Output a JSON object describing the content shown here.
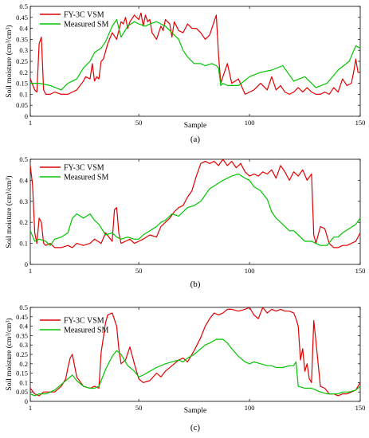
{
  "chart_data": [
    {
      "type": "line",
      "caption": "(a)",
      "xlabel": "Sample",
      "ylabel": "Soil moisture (cm³/cm³)",
      "xlim": [
        1,
        150
      ],
      "ylim": [
        0,
        0.5
      ],
      "xticks": [
        1,
        50,
        100,
        150
      ],
      "yticks": [
        0,
        0.05,
        0.1,
        0.15,
        0.2,
        0.25,
        0.3,
        0.35,
        0.4,
        0.45,
        0.5
      ],
      "legend_position": "top-left",
      "series": [
        {
          "name": "FY-3C VSM",
          "color": "#e00000",
          "x": [
            1,
            3,
            4,
            5,
            6,
            7,
            8,
            10,
            12,
            15,
            18,
            20,
            22,
            25,
            26,
            28,
            29,
            30,
            31,
            32,
            33,
            34,
            36,
            38,
            40,
            42,
            43,
            44,
            45,
            46,
            48,
            50,
            51,
            52,
            53,
            54,
            55,
            56,
            58,
            60,
            61,
            62,
            63,
            64,
            65,
            66,
            68,
            70,
            72,
            74,
            76,
            78,
            80,
            82,
            84,
            85,
            86,
            87,
            88,
            90,
            92,
            95,
            98,
            100,
            102,
            105,
            108,
            110,
            112,
            114,
            116,
            118,
            120,
            122,
            124,
            126,
            128,
            130,
            132,
            134,
            136,
            138,
            140,
            142,
            144,
            146,
            147,
            148,
            149,
            150
          ],
          "y": [
            0.17,
            0.12,
            0.11,
            0.33,
            0.36,
            0.12,
            0.1,
            0.1,
            0.11,
            0.1,
            0.1,
            0.11,
            0.12,
            0.16,
            0.18,
            0.17,
            0.24,
            0.16,
            0.18,
            0.17,
            0.25,
            0.26,
            0.33,
            0.38,
            0.35,
            0.43,
            0.42,
            0.45,
            0.4,
            0.43,
            0.46,
            0.44,
            0.47,
            0.41,
            0.46,
            0.43,
            0.44,
            0.38,
            0.35,
            0.41,
            0.39,
            0.44,
            0.43,
            0.42,
            0.36,
            0.43,
            0.39,
            0.38,
            0.42,
            0.4,
            0.4,
            0.38,
            0.35,
            0.37,
            0.43,
            0.46,
            0.28,
            0.15,
            0.18,
            0.24,
            0.15,
            0.17,
            0.1,
            0.11,
            0.12,
            0.15,
            0.12,
            0.18,
            0.12,
            0.14,
            0.11,
            0.1,
            0.11,
            0.13,
            0.11,
            0.13,
            0.11,
            0.1,
            0.1,
            0.11,
            0.1,
            0.13,
            0.11,
            0.17,
            0.14,
            0.15,
            0.2,
            0.26,
            0.2,
            0.2
          ]
        },
        {
          "name": "Measured SM",
          "color": "#00c400",
          "x": [
            1,
            5,
            10,
            15,
            18,
            20,
            22,
            25,
            28,
            30,
            33,
            35,
            38,
            40,
            42,
            45,
            48,
            50,
            53,
            55,
            58,
            60,
            62,
            65,
            68,
            70,
            72,
            75,
            78,
            80,
            83,
            85,
            86,
            87,
            88,
            90,
            95,
            100,
            105,
            110,
            115,
            120,
            125,
            130,
            135,
            140,
            145,
            148,
            150
          ],
          "y": [
            0.15,
            0.15,
            0.14,
            0.12,
            0.15,
            0.16,
            0.17,
            0.22,
            0.25,
            0.29,
            0.31,
            0.34,
            0.41,
            0.44,
            0.36,
            0.41,
            0.43,
            0.42,
            0.41,
            0.42,
            0.43,
            0.42,
            0.41,
            0.38,
            0.35,
            0.3,
            0.27,
            0.24,
            0.24,
            0.23,
            0.24,
            0.23,
            0.22,
            0.14,
            0.15,
            0.14,
            0.14,
            0.18,
            0.2,
            0.21,
            0.23,
            0.16,
            0.18,
            0.13,
            0.15,
            0.21,
            0.25,
            0.32,
            0.31
          ]
        }
      ]
    },
    {
      "type": "line",
      "caption": "(b)",
      "xlabel": "",
      "ylabel": "Soil moisture (cm³/cm³)",
      "xlim": [
        1,
        150
      ],
      "ylim": [
        0,
        0.5
      ],
      "xticks": [
        1,
        50,
        100,
        150
      ],
      "yticks": [
        0,
        0.1,
        0.2,
        0.3,
        0.4,
        0.5
      ],
      "legend_position": "top-left",
      "series": [
        {
          "name": "FY-3C VSM",
          "color": "#e00000",
          "x": [
            1,
            2,
            3,
            4,
            5,
            6,
            7,
            8,
            10,
            12,
            15,
            18,
            20,
            22,
            25,
            28,
            30,
            33,
            35,
            38,
            39,
            40,
            41,
            42,
            44,
            46,
            48,
            50,
            52,
            55,
            58,
            60,
            62,
            64,
            66,
            68,
            70,
            72,
            74,
            76,
            78,
            80,
            82,
            84,
            86,
            88,
            90,
            92,
            94,
            96,
            98,
            100,
            102,
            104,
            106,
            108,
            110,
            112,
            114,
            116,
            118,
            120,
            122,
            124,
            126,
            128,
            129,
            130,
            132,
            134,
            136,
            138,
            140,
            142,
            144,
            146,
            148,
            150
          ],
          "y": [
            0.47,
            0.38,
            0.15,
            0.1,
            0.22,
            0.2,
            0.1,
            0.09,
            0.1,
            0.08,
            0.08,
            0.09,
            0.08,
            0.1,
            0.09,
            0.1,
            0.12,
            0.1,
            0.15,
            0.11,
            0.26,
            0.27,
            0.15,
            0.1,
            0.11,
            0.12,
            0.1,
            0.11,
            0.12,
            0.14,
            0.13,
            0.18,
            0.2,
            0.22,
            0.25,
            0.27,
            0.28,
            0.32,
            0.35,
            0.42,
            0.48,
            0.49,
            0.48,
            0.49,
            0.47,
            0.5,
            0.47,
            0.49,
            0.46,
            0.48,
            0.44,
            0.42,
            0.43,
            0.42,
            0.44,
            0.43,
            0.45,
            0.41,
            0.47,
            0.44,
            0.4,
            0.44,
            0.42,
            0.45,
            0.4,
            0.43,
            0.14,
            0.1,
            0.18,
            0.17,
            0.1,
            0.08,
            0.08,
            0.09,
            0.09,
            0.1,
            0.11,
            0.15
          ]
        },
        {
          "name": "Measured SM",
          "color": "#00c400",
          "x": [
            1,
            3,
            5,
            8,
            10,
            12,
            15,
            18,
            20,
            22,
            25,
            28,
            30,
            32,
            35,
            38,
            40,
            42,
            45,
            48,
            50,
            52,
            55,
            58,
            60,
            62,
            65,
            68,
            70,
            72,
            75,
            78,
            80,
            82,
            85,
            88,
            90,
            92,
            95,
            98,
            100,
            102,
            105,
            108,
            110,
            112,
            115,
            118,
            120,
            122,
            125,
            128,
            130,
            132,
            135,
            138,
            140,
            142,
            145,
            148,
            150
          ],
          "y": [
            0.16,
            0.11,
            0.12,
            0.11,
            0.09,
            0.12,
            0.13,
            0.15,
            0.22,
            0.24,
            0.22,
            0.24,
            0.21,
            0.19,
            0.14,
            0.15,
            0.13,
            0.12,
            0.13,
            0.12,
            0.12,
            0.14,
            0.16,
            0.18,
            0.2,
            0.21,
            0.24,
            0.23,
            0.25,
            0.27,
            0.28,
            0.3,
            0.33,
            0.36,
            0.38,
            0.4,
            0.41,
            0.42,
            0.43,
            0.41,
            0.4,
            0.37,
            0.35,
            0.31,
            0.25,
            0.22,
            0.19,
            0.16,
            0.16,
            0.14,
            0.11,
            0.11,
            0.1,
            0.09,
            0.09,
            0.13,
            0.13,
            0.15,
            0.17,
            0.19,
            0.22
          ]
        }
      ]
    },
    {
      "type": "line",
      "caption": "(c)",
      "xlabel": "Sample",
      "ylabel": "Soil moisture (cm³/cm³)",
      "xlim": [
        1,
        150
      ],
      "ylim": [
        0,
        0.5
      ],
      "xticks": [
        1,
        50,
        100,
        150
      ],
      "yticks": [
        0,
        0.05,
        0.1,
        0.15,
        0.2,
        0.25,
        0.3,
        0.35,
        0.4,
        0.45,
        0.5
      ],
      "legend_position": "top-left",
      "series": [
        {
          "name": "FY-3C VSM",
          "color": "#e00000",
          "x": [
            1,
            3,
            5,
            7,
            10,
            12,
            15,
            17,
            18,
            19,
            20,
            22,
            25,
            28,
            30,
            32,
            33,
            35,
            36,
            38,
            40,
            41,
            42,
            44,
            46,
            48,
            50,
            52,
            55,
            58,
            60,
            62,
            65,
            68,
            70,
            72,
            75,
            78,
            80,
            82,
            84,
            86,
            88,
            90,
            92,
            95,
            98,
            100,
            102,
            104,
            106,
            108,
            110,
            112,
            114,
            116,
            118,
            120,
            121,
            122,
            123,
            124,
            125,
            126,
            127,
            128,
            129,
            130,
            132,
            134,
            136,
            138,
            140,
            142,
            144,
            146,
            148,
            150
          ],
          "y": [
            0.07,
            0.04,
            0.03,
            0.05,
            0.05,
            0.05,
            0.08,
            0.12,
            0.18,
            0.23,
            0.25,
            0.13,
            0.08,
            0.07,
            0.08,
            0.07,
            0.26,
            0.42,
            0.46,
            0.47,
            0.4,
            0.28,
            0.2,
            0.22,
            0.29,
            0.2,
            0.12,
            0.1,
            0.11,
            0.15,
            0.13,
            0.16,
            0.19,
            0.22,
            0.23,
            0.21,
            0.27,
            0.34,
            0.4,
            0.44,
            0.47,
            0.46,
            0.47,
            0.49,
            0.49,
            0.48,
            0.49,
            0.5,
            0.46,
            0.44,
            0.5,
            0.47,
            0.49,
            0.48,
            0.49,
            0.48,
            0.48,
            0.47,
            0.44,
            0.4,
            0.22,
            0.28,
            0.16,
            0.2,
            0.12,
            0.1,
            0.43,
            0.32,
            0.08,
            0.07,
            0.04,
            0.04,
            0.03,
            0.04,
            0.04,
            0.05,
            0.06,
            0.1
          ]
        },
        {
          "name": "Measured SM",
          "color": "#00c400",
          "x": [
            1,
            3,
            5,
            8,
            10,
            12,
            15,
            18,
            20,
            22,
            25,
            28,
            30,
            32,
            35,
            38,
            40,
            42,
            45,
            48,
            50,
            52,
            55,
            58,
            60,
            62,
            65,
            68,
            70,
            72,
            75,
            78,
            80,
            82,
            85,
            88,
            90,
            92,
            95,
            98,
            100,
            102,
            105,
            108,
            110,
            112,
            115,
            118,
            120,
            121,
            122,
            125,
            128,
            130,
            132,
            135,
            138,
            140,
            142,
            145,
            148,
            150
          ],
          "y": [
            0.04,
            0.03,
            0.04,
            0.04,
            0.05,
            0.06,
            0.09,
            0.12,
            0.14,
            0.11,
            0.08,
            0.07,
            0.07,
            0.08,
            0.17,
            0.24,
            0.27,
            0.25,
            0.19,
            0.16,
            0.13,
            0.14,
            0.16,
            0.18,
            0.19,
            0.2,
            0.21,
            0.22,
            0.21,
            0.23,
            0.25,
            0.28,
            0.3,
            0.31,
            0.33,
            0.33,
            0.31,
            0.28,
            0.24,
            0.21,
            0.2,
            0.21,
            0.2,
            0.19,
            0.19,
            0.18,
            0.18,
            0.19,
            0.19,
            0.21,
            0.08,
            0.07,
            0.07,
            0.06,
            0.05,
            0.04,
            0.04,
            0.04,
            0.05,
            0.05,
            0.06,
            0.08
          ]
        }
      ]
    }
  ]
}
